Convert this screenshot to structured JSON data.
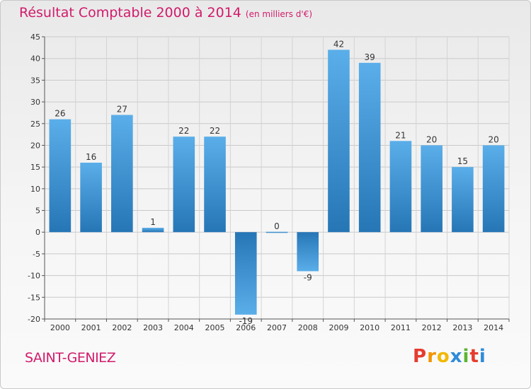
{
  "title": "Résultat Comptable 2000 à 2014",
  "subtitle": "(en milliers d'€)",
  "town": "SAINT-GENIEZ",
  "brand": [
    "P",
    "r",
    "o",
    "x",
    "i",
    "t",
    "i"
  ],
  "colors": {
    "title": "#d11b6b",
    "bar_light": "#5aaee9",
    "bar_dark": "#2676b6",
    "grid": "#c9c9c9"
  },
  "chart_data": {
    "type": "bar",
    "categories": [
      "2000",
      "2001",
      "2002",
      "2003",
      "2004",
      "2005",
      "2006",
      "2007",
      "2008",
      "2009",
      "2010",
      "2011",
      "2012",
      "2013",
      "2014"
    ],
    "values": [
      26,
      16,
      27,
      1,
      22,
      22,
      -19,
      0,
      -9,
      42,
      39,
      21,
      20,
      15,
      20
    ],
    "yticks": [
      45,
      40,
      35,
      30,
      25,
      20,
      15,
      10,
      5,
      0,
      -5,
      -10,
      -15,
      -20
    ],
    "ylim": [
      -20,
      45
    ],
    "grid": true,
    "xlabel": "",
    "ylabel": ""
  }
}
